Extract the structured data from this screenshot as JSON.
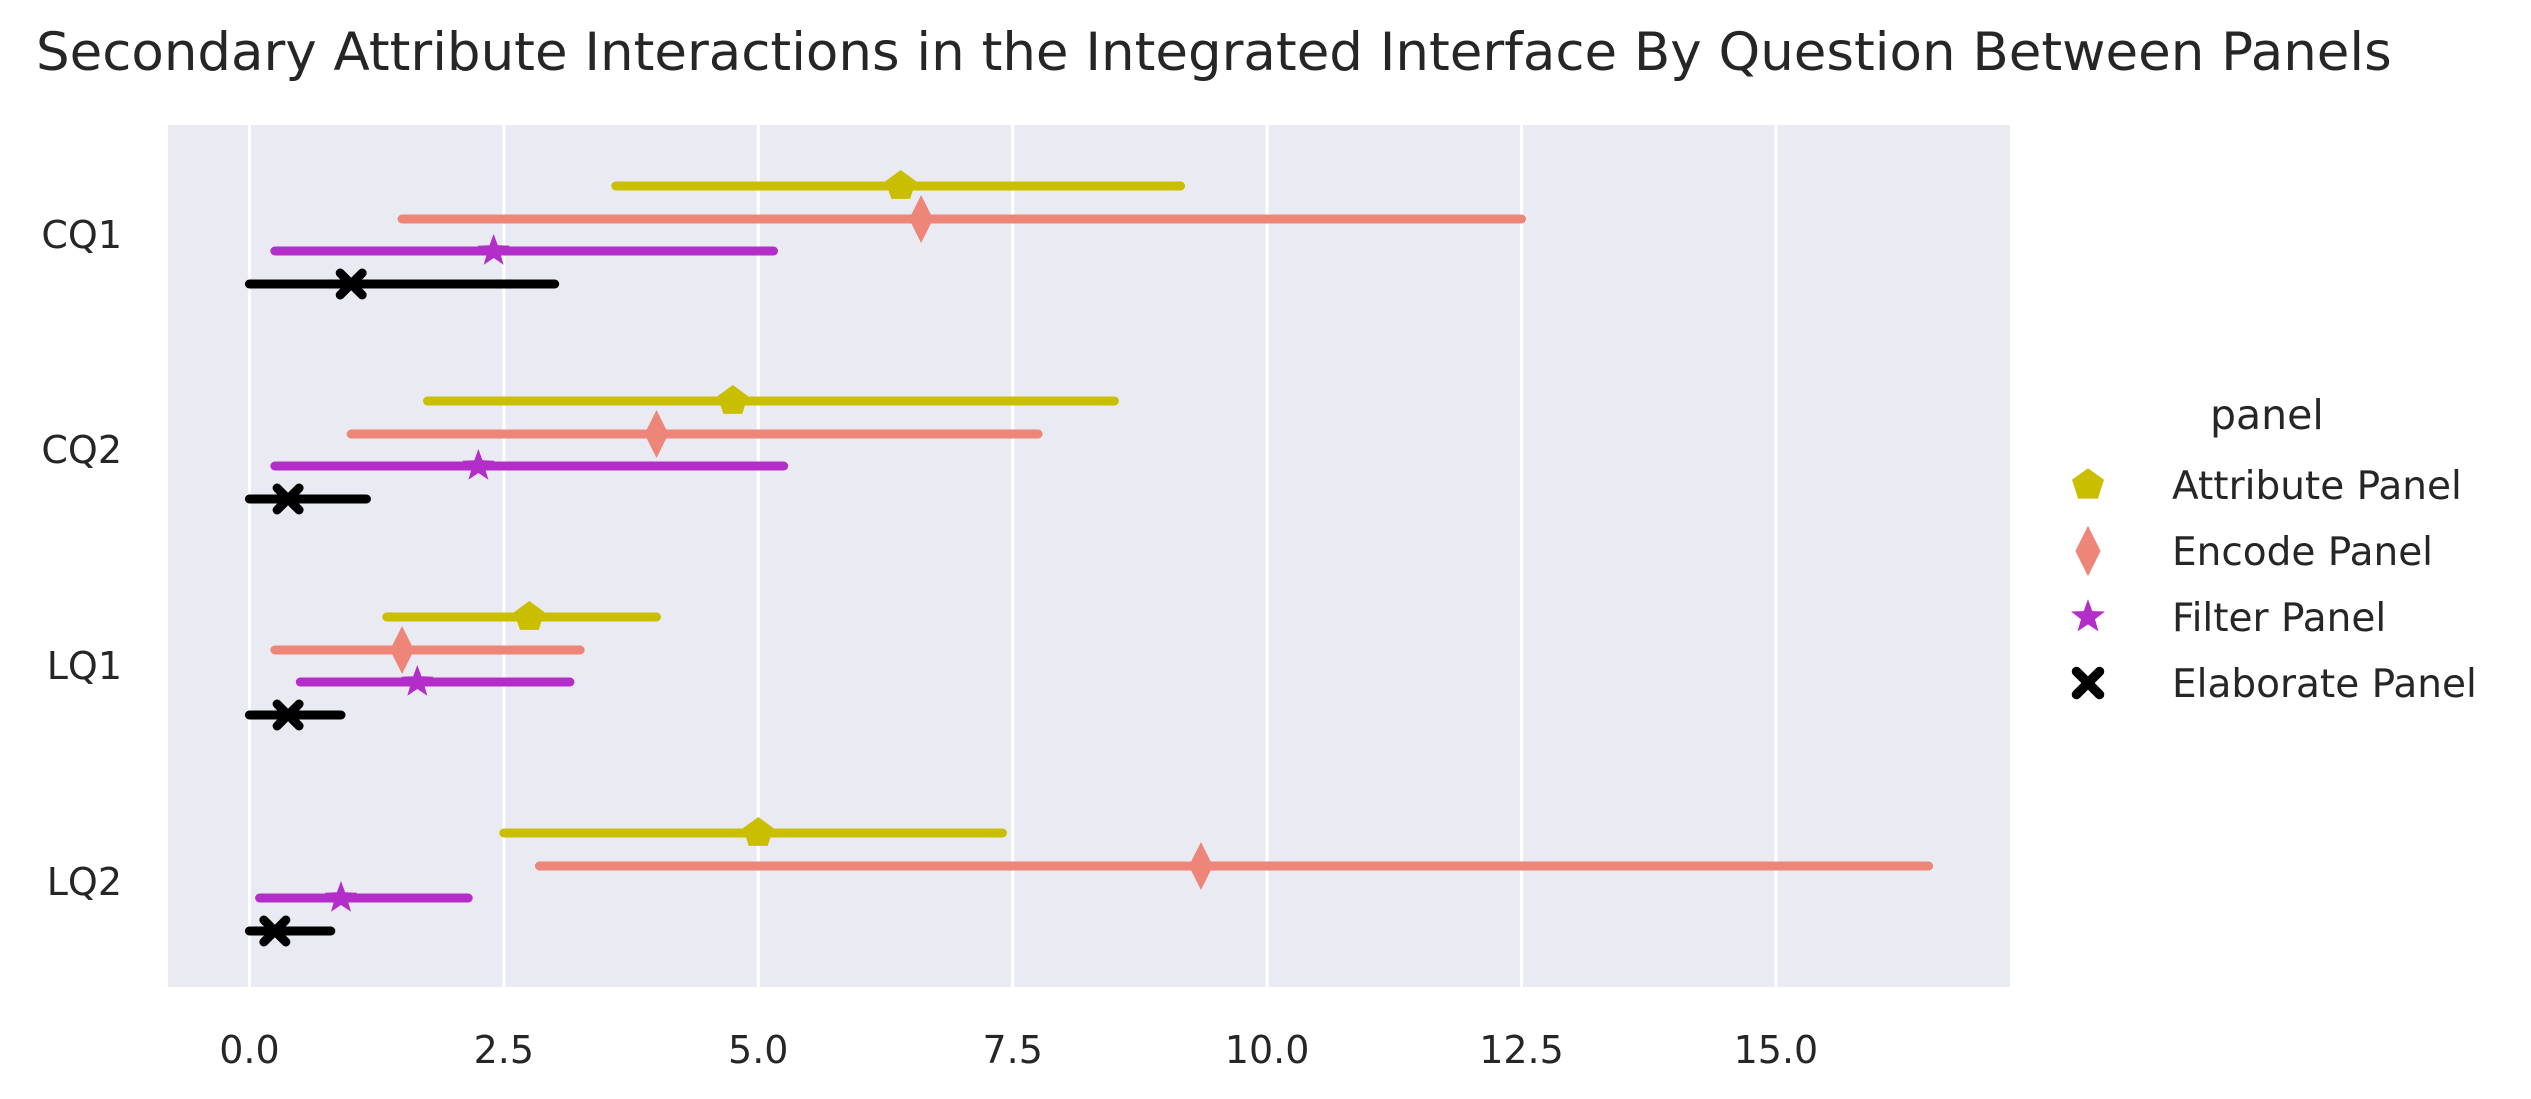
{
  "chart_data": {
    "type": "pointrange",
    "title": "Secondary Attribute Interactions in the Integrated Interface By Question Between Panels",
    "xlabel": "",
    "ylabel": "",
    "xlim": [
      -0.8,
      17.3
    ],
    "x_ticks": [
      "0.0",
      "2.5",
      "5.0",
      "7.5",
      "10.0",
      "12.5",
      "15.0"
    ],
    "x_tick_values": [
      0,
      2.5,
      5,
      7.5,
      10,
      12.5,
      15
    ],
    "categories": [
      "CQ1",
      "CQ2",
      "LQ1",
      "LQ2"
    ],
    "grid": true,
    "legend": {
      "title": "panel",
      "placement": "right"
    },
    "series": [
      {
        "name": "Attribute Panel",
        "color": "#c9be00",
        "marker": "pentagon",
        "values": [
          6.4,
          4.75,
          2.75,
          5.0
        ],
        "lower": [
          3.6,
          1.75,
          1.35,
          2.5
        ],
        "upper": [
          9.15,
          8.5,
          4.0,
          7.4
        ]
      },
      {
        "name": "Encode Panel",
        "color": "#ed8579",
        "marker": "diamond",
        "values": [
          6.6,
          4.0,
          1.5,
          9.35
        ],
        "lower": [
          1.5,
          1.0,
          0.25,
          2.85
        ],
        "upper": [
          12.5,
          7.75,
          3.25,
          16.5
        ]
      },
      {
        "name": "Filter Panel",
        "color": "#b32dc9",
        "marker": "star",
        "values": [
          2.4,
          2.25,
          1.65,
          0.9
        ],
        "lower": [
          0.25,
          0.25,
          0.5,
          0.1
        ],
        "upper": [
          5.15,
          5.25,
          3.15,
          2.15
        ]
      },
      {
        "name": "Elaborate Panel",
        "color": "#000000",
        "marker": "x",
        "values": [
          1.0,
          0.38,
          0.38,
          0.25
        ],
        "lower": [
          0.0,
          0.0,
          0.0,
          0.0
        ],
        "upper": [
          3.0,
          1.15,
          0.9,
          0.8
        ]
      }
    ]
  },
  "style": {
    "plot_bg": "#eaeaf2",
    "grid_color": "#ffffff",
    "text_color": "#262626"
  }
}
